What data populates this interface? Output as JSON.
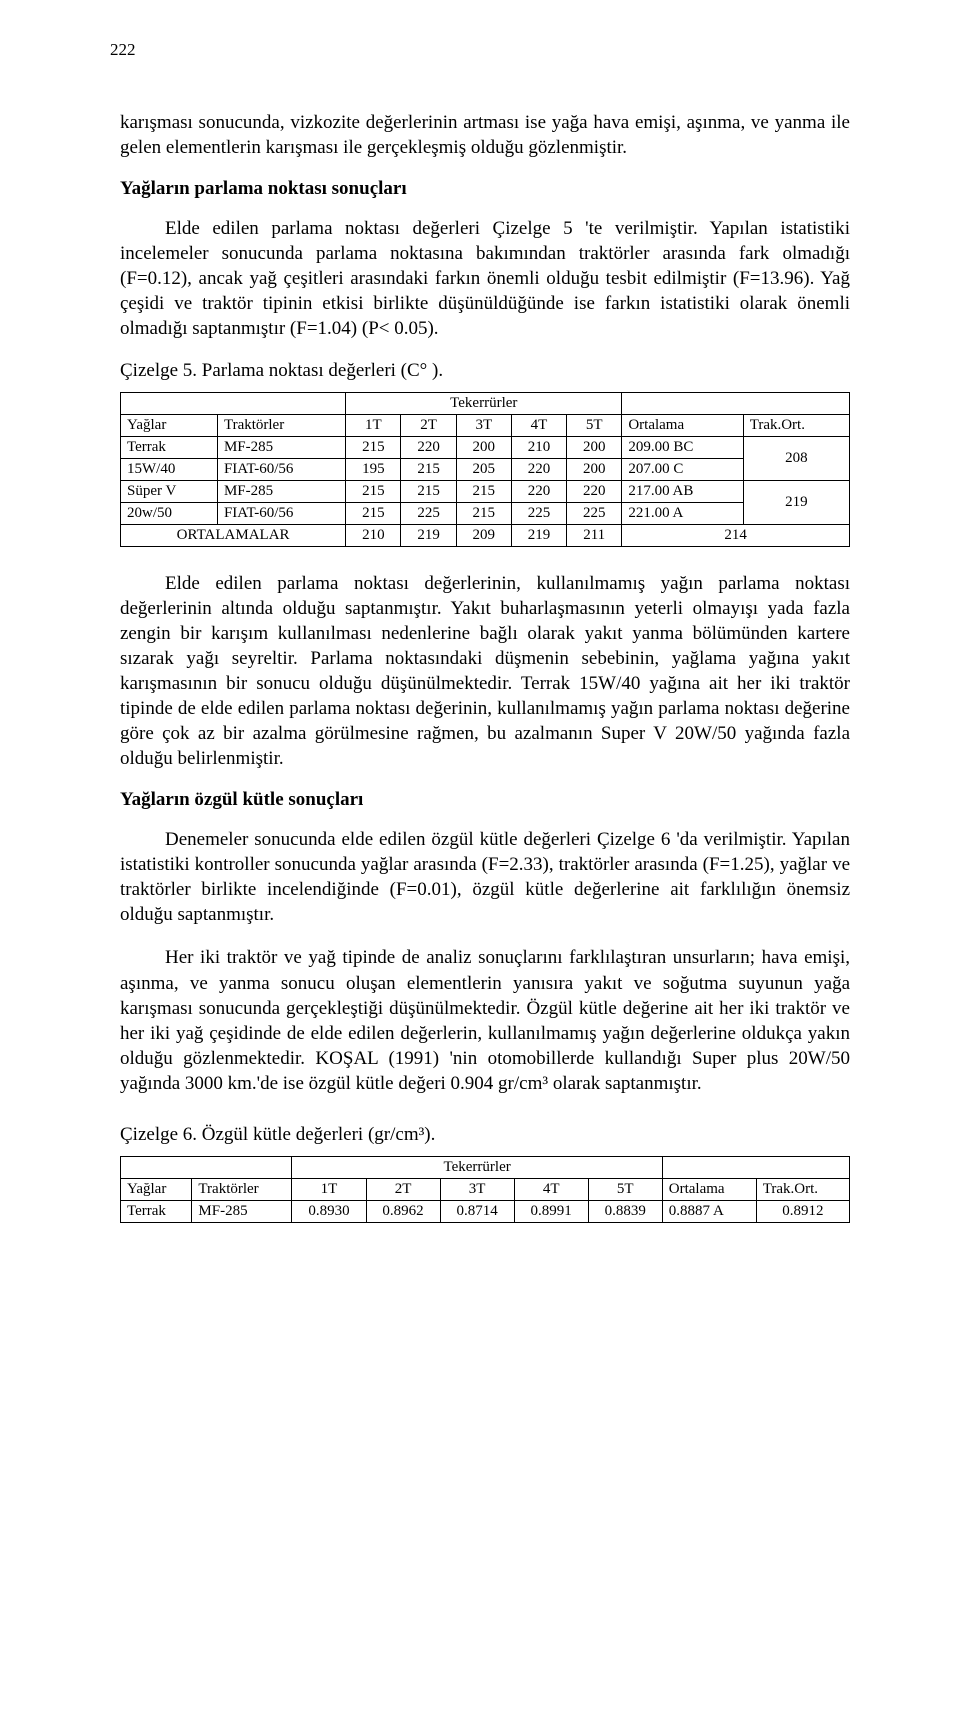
{
  "page_number": "222",
  "p1": "karışması sonucunda, vizkozite değerlerinin artması ise yağa hava emişi, aşınma, ve yanma ile gelen elementlerin karışması ile gerçekleşmiş olduğu gözlenmiştir.",
  "h1": "Yağların parlama noktası sonuçları",
  "p2": "Elde edilen parlama noktası değerleri Çizelge 5 'te verilmiştir. Yapılan istatistiki incelemeler sonucunda parlama noktasına bakımından traktörler arasında fark olmadığı (F=0.12), ancak yağ çeşitleri arasındaki farkın önemli olduğu tesbit edilmiştir (F=13.96). Yağ çeşidi ve traktör tipinin etkisi birlikte düşünüldüğünde ise farkın istatistiki olarak önemli olmadığı saptanmıştır (F=1.04) (P< 0.05).",
  "c5": "Çizelge 5. Parlama noktası değerleri (C° ).",
  "table5": {
    "tek_label": "Tekerrürler",
    "head": [
      "Yağlar",
      "Traktörler",
      "1T",
      "2T",
      "3T",
      "4T",
      "5T",
      "Ortalama",
      "Trak.Ort."
    ],
    "rows": [
      [
        "Terrak",
        "MF-285",
        "215",
        "220",
        "200",
        "210",
        "200",
        "209.00 BC",
        "208"
      ],
      [
        "15W/40",
        "FIAT-60/56",
        "195",
        "215",
        "205",
        "220",
        "200",
        "207.00 C",
        ""
      ],
      [
        "Süper V",
        "MF-285",
        "215",
        "215",
        "215",
        "220",
        "220",
        "217.00 AB",
        "219"
      ],
      [
        "20w/50",
        "FIAT-60/56",
        "215",
        "225",
        "215",
        "225",
        "225",
        "221.00 A",
        ""
      ]
    ],
    "ort_label": "ORTALAMALAR",
    "ort_vals": [
      "210",
      "219",
      "209",
      "219",
      "211",
      "214"
    ]
  },
  "p3": "Elde edilen parlama noktası değerlerinin, kullanılmamış yağın parlama noktası değerlerinin altında olduğu saptanmıştır. Yakıt buharlaşmasının yeterli olmayışı yada fazla zengin bir karışım kullanılması nedenlerine bağlı olarak yakıt yanma bölümünden kartere sızarak yağı seyreltir. Parlama noktasındaki düşmenin sebebinin, yağlama yağına yakıt karışmasının bir sonucu olduğu düşünülmektedir. Terrak 15W/40 yağına ait her iki traktör tipinde de elde edilen parlama noktası değerinin, kullanılmamış yağın parlama noktası değerine göre çok az bir azalma görülmesine rağmen, bu azalmanın Super V 20W/50 yağında fazla olduğu belirlenmiştir.",
  "h2": "Yağların özgül kütle sonuçları",
  "p4": "Denemeler sonucunda elde edilen özgül kütle değerleri Çizelge 6 'da verilmiştir. Yapılan istatistiki kontroller sonucunda yağlar arasında (F=2.33), traktörler arasında (F=1.25), yağlar ve traktörler birlikte incelendiğinde (F=0.01), özgül kütle değerlerine ait farklılığın  önemsiz olduğu saptanmıştır.",
  "p5": "Her iki traktör ve yağ tipinde de analiz sonuçlarını farklılaştıran unsurların; hava emişi, aşınma, ve yanma sonucu oluşan elementlerin yanısıra yakıt ve soğutma suyunun yağa karışması sonucunda gerçekleştiği düşünülmektedir. Özgül kütle değerine ait her iki traktör ve her iki yağ çeşidinde de elde edilen değerlerin, kullanılmamış yağın değerlerine oldukça yakın olduğu gözlenmektedir. KOŞAL (1991) 'nin otomobillerde kullandığı Super plus 20W/50 yağında 3000 km.'de ise özgül kütle değeri 0.904 gr/cm³ olarak saptanmıştır.",
  "c6": "Çizelge 6. Özgül kütle değerleri (gr/cm³).",
  "table6": {
    "tek_label": "Tekerrürler",
    "head": [
      "Yağlar",
      "Traktörler",
      "1T",
      "2T",
      "3T",
      "4T",
      "5T",
      "Ortalama",
      "Trak.Ort."
    ],
    "rows": [
      [
        "Terrak",
        "MF-285",
        "0.8930",
        "0.8962",
        "0.8714",
        "0.8991",
        "0.8839",
        "0.8887 A",
        "0.8912"
      ]
    ]
  }
}
